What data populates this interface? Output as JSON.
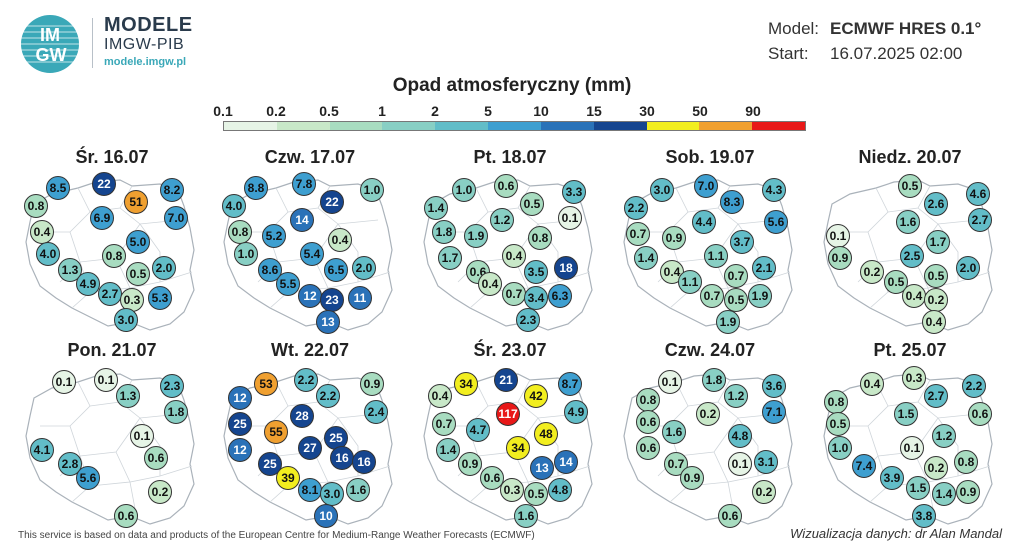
{
  "brand": {
    "logo_text_top": "IM",
    "logo_text_bottom": "GW",
    "title": "MODELE",
    "subtitle": "IMGW-PIB",
    "url": "modele.imgw.pl"
  },
  "meta": {
    "model_label": "Model:",
    "model_value": "ECMWF HRES 0.1°",
    "start_label": "Start:",
    "start_value": "16.07.2025 02:00"
  },
  "legend": {
    "title": "Opad atmosferyczny (mm)",
    "labels": [
      "0.1",
      "0.2",
      "0.5",
      "1",
      "2",
      "5",
      "10",
      "15",
      "30",
      "50",
      "90"
    ],
    "colors": [
      "#e6f4e6",
      "#c8e8c8",
      "#a8dcc0",
      "#88cfc4",
      "#62bdc8",
      "#3e9fd0",
      "#2a72b8",
      "#15458f",
      "#f2ee1f",
      "#f0a030",
      "#e81818"
    ]
  },
  "panels": [
    {
      "title": "Śr. 16.07",
      "values": [
        {
          "v": "8.5"
        },
        {
          "v": "22"
        },
        {
          "v": "8.2"
        },
        {
          "v": "0.8"
        },
        {
          "v": "51"
        },
        {
          "v": "6.9"
        },
        {
          "v": "7.0"
        },
        {
          "v": "0.4"
        },
        {
          "v": "5.0"
        },
        {
          "v": "4.0"
        },
        {
          "v": "0.8"
        },
        {
          "v": "2.0"
        },
        {
          "v": "1.3"
        },
        {
          "v": "0.5"
        },
        {
          "v": "4.9"
        },
        {
          "v": "2.7"
        },
        {
          "v": "0.3"
        },
        {
          "v": "5.3"
        },
        {
          "v": "3.0"
        }
      ]
    },
    {
      "title": "Czw. 17.07",
      "values": [
        {
          "v": "8.8"
        },
        {
          "v": "7.8"
        },
        {
          "v": "1.0"
        },
        {
          "v": "4.0"
        },
        {
          "v": "22"
        },
        {
          "v": "14"
        },
        {
          "v": "0.8"
        },
        {
          "v": "5.2"
        },
        {
          "v": "0.4"
        },
        {
          "v": "1.0"
        },
        {
          "v": "5.4"
        },
        {
          "v": "8.6"
        },
        {
          "v": "6.5"
        },
        {
          "v": "2.0"
        },
        {
          "v": "5.5"
        },
        {
          "v": "12"
        },
        {
          "v": "23"
        },
        {
          "v": "11"
        },
        {
          "v": "13"
        }
      ]
    },
    {
      "title": "Pt. 18.07",
      "values": [
        {
          "v": "1.0"
        },
        {
          "v": "0.6"
        },
        {
          "v": "3.3"
        },
        {
          "v": "1.4"
        },
        {
          "v": "0.5"
        },
        {
          "v": "1.2"
        },
        {
          "v": "0.1"
        },
        {
          "v": "1.8"
        },
        {
          "v": "1.9"
        },
        {
          "v": "0.8"
        },
        {
          "v": "1.7"
        },
        {
          "v": "0.4"
        },
        {
          "v": "18"
        },
        {
          "v": "0.6"
        },
        {
          "v": "3.5"
        },
        {
          "v": "0.4"
        },
        {
          "v": "0.7"
        },
        {
          "v": "3.4"
        },
        {
          "v": "6.3"
        },
        {
          "v": "2.3"
        }
      ]
    },
    {
      "title": "Sob. 19.07",
      "values": [
        {
          "v": "3.0"
        },
        {
          "v": "7.0"
        },
        {
          "v": "4.3"
        },
        {
          "v": "2.2"
        },
        {
          "v": "8.3"
        },
        {
          "v": "5.6"
        },
        {
          "v": "4.4"
        },
        {
          "v": "0.7"
        },
        {
          "v": "0.9"
        },
        {
          "v": "3.7"
        },
        {
          "v": "1.4"
        },
        {
          "v": "1.1"
        },
        {
          "v": "0.7"
        },
        {
          "v": "2.1"
        },
        {
          "v": "0.4"
        },
        {
          "v": "1.1"
        },
        {
          "v": "0.7"
        },
        {
          "v": "0.5"
        },
        {
          "v": "1.9"
        },
        {
          "v": "1.9"
        }
      ]
    },
    {
      "title": "Niedz. 20.07",
      "values": [
        {
          "v": "0.5"
        },
        {
          "v": "4.6"
        },
        {
          "v": "2.6"
        },
        {
          "v": "1.6"
        },
        {
          "v": "2.7"
        },
        {
          "v": "0.1"
        },
        {
          "v": "1.7"
        },
        {
          "v": "0.9"
        },
        {
          "v": "2.5"
        },
        {
          "v": "2.0"
        },
        {
          "v": "0.2"
        },
        {
          "v": "0.5"
        },
        {
          "v": "0.5"
        },
        {
          "v": "0.4"
        },
        {
          "v": "0.2"
        },
        {
          "v": "0.4"
        }
      ]
    },
    {
      "title": "Pon. 21.07",
      "values": [
        {
          "v": "0.1"
        },
        {
          "v": "0.1"
        },
        {
          "v": "2.3"
        },
        {
          "v": "1.3"
        },
        {
          "v": "1.8"
        },
        {
          "v": "0.1"
        },
        {
          "v": "4.1"
        },
        {
          "v": "0.6"
        },
        {
          "v": "2.8"
        },
        {
          "v": "5.6"
        },
        {
          "v": "0.2"
        },
        {
          "v": "0.6"
        }
      ]
    },
    {
      "title": "Wt. 22.07",
      "values": [
        {
          "v": "53"
        },
        {
          "v": "2.2"
        },
        {
          "v": "0.9"
        },
        {
          "v": "12"
        },
        {
          "v": "2.2"
        },
        {
          "v": "2.4"
        },
        {
          "v": "25"
        },
        {
          "v": "28"
        },
        {
          "v": "55"
        },
        {
          "v": "25"
        },
        {
          "v": "12"
        },
        {
          "v": "27"
        },
        {
          "v": "25"
        },
        {
          "v": "16"
        },
        {
          "v": "16"
        },
        {
          "v": "39"
        },
        {
          "v": "8.1"
        },
        {
          "v": "3.0"
        },
        {
          "v": "1.6"
        },
        {
          "v": "10"
        }
      ]
    },
    {
      "title": "Śr. 23.07",
      "values": [
        {
          "v": "34"
        },
        {
          "v": "21"
        },
        {
          "v": "8.7"
        },
        {
          "v": "0.4"
        },
        {
          "v": "42"
        },
        {
          "v": "4.9"
        },
        {
          "v": "117"
        },
        {
          "v": "0.7"
        },
        {
          "v": "4.7"
        },
        {
          "v": "48"
        },
        {
          "v": "1.4"
        },
        {
          "v": "34"
        },
        {
          "v": "14"
        },
        {
          "v": "0.9"
        },
        {
          "v": "0.6"
        },
        {
          "v": "13"
        },
        {
          "v": "0.3"
        },
        {
          "v": "0.5"
        },
        {
          "v": "4.8"
        },
        {
          "v": "1.6"
        }
      ]
    },
    {
      "title": "Czw. 24.07",
      "values": [
        {
          "v": "0.1"
        },
        {
          "v": "1.8"
        },
        {
          "v": "3.6"
        },
        {
          "v": "0.8"
        },
        {
          "v": "1.2"
        },
        {
          "v": "7.1"
        },
        {
          "v": "0.6"
        },
        {
          "v": "0.2"
        },
        {
          "v": "1.6"
        },
        {
          "v": "4.8"
        },
        {
          "v": "0.6"
        },
        {
          "v": "0.7"
        },
        {
          "v": "0.1"
        },
        {
          "v": "3.1"
        },
        {
          "v": "0.9"
        },
        {
          "v": "0.2"
        },
        {
          "v": "0.6"
        }
      ]
    },
    {
      "title": "Pt. 25.07",
      "values": [
        {
          "v": "0.4"
        },
        {
          "v": "0.3"
        },
        {
          "v": "2.2"
        },
        {
          "v": "0.8"
        },
        {
          "v": "2.7"
        },
        {
          "v": "0.6"
        },
        {
          "v": "0.5"
        },
        {
          "v": "1.5"
        },
        {
          "v": "1.2"
        },
        {
          "v": "1.0"
        },
        {
          "v": "0.1"
        },
        {
          "v": "0.8"
        },
        {
          "v": "7.4"
        },
        {
          "v": "0.2"
        },
        {
          "v": "3.9"
        },
        {
          "v": "1.5"
        },
        {
          "v": "1.4"
        },
        {
          "v": "0.9"
        },
        {
          "v": "3.8"
        }
      ]
    }
  ],
  "footer": {
    "left": "This service is based on data and products of the European Centre for Medium-Range Weather Forecasts (ECMWF)",
    "right": "Wizualizacja danych: dr Alan Mandal"
  }
}
